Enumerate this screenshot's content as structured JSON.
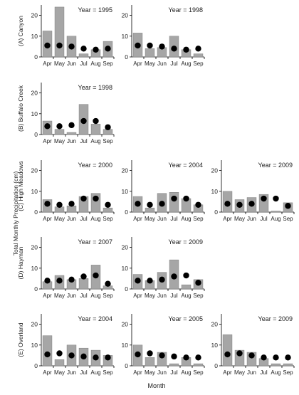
{
  "figure": {
    "ylabel": "Total Monthly Precipitation (cm)",
    "xlabel": "Month"
  },
  "chart_data": [
    {
      "type": "bar",
      "row": 0,
      "col": 0,
      "row_label": "(A)  Canyon",
      "title": "Year = 1995",
      "categories": [
        "Apr",
        "May",
        "Jun",
        "Jul",
        "Aug",
        "Sep"
      ],
      "ylim": [
        0,
        25
      ],
      "yticks": [
        0,
        10,
        20
      ],
      "series": [
        {
          "values": [
            12.5,
            24,
            10,
            1.5,
            3.5,
            7.5
          ]
        },
        {
          "values": [
            5.5,
            5.5,
            5,
            4,
            3.5,
            4
          ]
        }
      ]
    },
    {
      "type": "bar",
      "row": 0,
      "col": 1,
      "row_label": "",
      "title": "Year = 1998",
      "categories": [
        "Apr",
        "May",
        "Jun",
        "Jul",
        "Aug",
        "Sep"
      ],
      "ylim": [
        0,
        25
      ],
      "yticks": [
        0,
        10,
        20
      ],
      "series": [
        {
          "values": [
            11.5,
            4,
            4.5,
            10,
            3.5,
            1.5
          ]
        },
        {
          "values": [
            5.5,
            5.5,
            5,
            4,
            3.5,
            4
          ]
        }
      ]
    },
    {
      "type": "bar",
      "row": 1,
      "col": 0,
      "row_label": "(B)  Buffalo Creek",
      "title": "Year = 1998",
      "categories": [
        "Apr",
        "May",
        "Jun",
        "Jul",
        "Aug",
        "Sep"
      ],
      "ylim": [
        0,
        25
      ],
      "yticks": [
        0,
        10,
        20
      ],
      "series": [
        {
          "values": [
            6.5,
            2.5,
            1,
            14.5,
            5,
            2.5
          ]
        },
        {
          "values": [
            4,
            4,
            4.5,
            6.5,
            6.5,
            3.5
          ]
        }
      ]
    },
    {
      "type": "bar",
      "row": 2,
      "col": 0,
      "row_label": "(C)  High Meadows",
      "title": "Year = 2000",
      "categories": [
        "Apr",
        "May",
        "Jun",
        "Jul",
        "Aug",
        "Sep"
      ],
      "ylim": [
        0,
        25
      ],
      "yticks": [
        0,
        10,
        20
      ],
      "series": [
        {
          "values": [
            6,
            2.5,
            3,
            7.5,
            9,
            2
          ]
        },
        {
          "values": [
            4,
            3.5,
            4,
            6.5,
            6.5,
            3.5
          ]
        }
      ]
    },
    {
      "type": "bar",
      "row": 2,
      "col": 1,
      "row_label": "",
      "title": "Year = 2004",
      "categories": [
        "Apr",
        "May",
        "Jun",
        "Jul",
        "Aug",
        "Sep"
      ],
      "ylim": [
        0,
        25
      ],
      "yticks": [
        0,
        10,
        20
      ],
      "series": [
        {
          "values": [
            7.5,
            2,
            9,
            9.5,
            6.5,
            3.5
          ]
        },
        {
          "values": [
            4,
            3.5,
            4,
            6.5,
            6.5,
            3.5
          ]
        }
      ]
    },
    {
      "type": "bar",
      "row": 2,
      "col": 2,
      "row_label": "",
      "title": "Year = 2009",
      "categories": [
        "Apr",
        "May",
        "Jun",
        "Jul",
        "Aug",
        "Sep"
      ],
      "ylim": [
        0,
        25
      ],
      "yticks": [
        0,
        10,
        20
      ],
      "series": [
        {
          "values": [
            10,
            6,
            7,
            8.5,
            0.5,
            4.5
          ]
        },
        {
          "values": [
            4,
            3.5,
            4,
            6.5,
            6.5,
            3
          ]
        }
      ]
    },
    {
      "type": "bar",
      "row": 3,
      "col": 0,
      "row_label": "(D)  Hayman",
      "title": "Year = 2007",
      "categories": [
        "Apr",
        "May",
        "Jun",
        "Jul",
        "Aug",
        "Sep"
      ],
      "ylim": [
        0,
        25
      ],
      "yticks": [
        0,
        10,
        20
      ],
      "series": [
        {
          "values": [
            3.5,
            6.5,
            4.5,
            5,
            11.5,
            1.5
          ]
        },
        {
          "values": [
            4,
            4,
            4.5,
            6,
            6.5,
            2.5
          ]
        }
      ]
    },
    {
      "type": "bar",
      "row": 3,
      "col": 1,
      "row_label": "",
      "title": "Year = 2009",
      "categories": [
        "Apr",
        "May",
        "Jun",
        "Jul",
        "Aug",
        "Sep"
      ],
      "ylim": [
        0,
        25
      ],
      "yticks": [
        0,
        10,
        20
      ],
      "series": [
        {
          "values": [
            7,
            4,
            8,
            14,
            2,
            4.5
          ]
        },
        {
          "values": [
            4,
            4,
            4.5,
            6,
            6.5,
            3
          ]
        }
      ]
    },
    {
      "type": "bar",
      "row": 4,
      "col": 0,
      "row_label": "(E)  Overland",
      "title": "Year = 2004",
      "categories": [
        "Apr",
        "May",
        "Jun",
        "Jul",
        "Aug",
        "Sep"
      ],
      "ylim": [
        0,
        25
      ],
      "yticks": [
        0,
        10,
        20
      ],
      "series": [
        {
          "values": [
            14.5,
            3,
            10,
            8.5,
            7.5,
            5
          ]
        },
        {
          "values": [
            5.5,
            6,
            5,
            4.5,
            4,
            4
          ]
        }
      ]
    },
    {
      "type": "bar",
      "row": 4,
      "col": 1,
      "row_label": "",
      "title": "Year = 2005",
      "categories": [
        "Apr",
        "May",
        "Jun",
        "Jul",
        "Aug",
        "Sep"
      ],
      "ylim": [
        0,
        25
      ],
      "yticks": [
        0,
        10,
        20
      ],
      "series": [
        {
          "values": [
            10,
            4,
            6.5,
            1,
            4,
            1
          ]
        },
        {
          "values": [
            5.5,
            6,
            5,
            4.5,
            4,
            4
          ]
        }
      ]
    },
    {
      "type": "bar",
      "row": 4,
      "col": 2,
      "row_label": "",
      "title": "Year = 2009",
      "categories": [
        "Apr",
        "May",
        "Jun",
        "Jul",
        "Aug",
        "Sep"
      ],
      "ylim": [
        0,
        25
      ],
      "yticks": [
        0,
        10,
        20
      ],
      "series": [
        {
          "values": [
            15,
            7.5,
            6.5,
            3.5,
            1,
            1
          ]
        },
        {
          "values": [
            5.5,
            6,
            5,
            4,
            4,
            4
          ]
        }
      ]
    }
  ]
}
